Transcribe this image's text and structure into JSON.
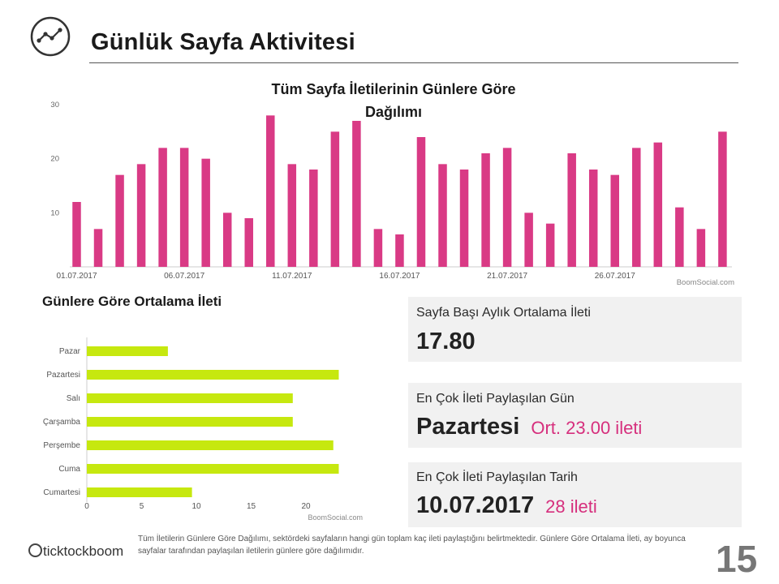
{
  "header": {
    "title": "Günlük Sayfa Aktivitesi",
    "icon": "line-chart-icon"
  },
  "chart1": {
    "title": "Tüm Sayfa İletilerinin Günlere Göre Dağılımı"
  },
  "chart2": {
    "heading": "Günlere Göre Ortalama İleti"
  },
  "chart_data": [
    {
      "type": "bar",
      "title": "Tüm Sayfa İletilerinin Günlere Göre Dağılımı",
      "color": "#d93a85",
      "categories": [
        "01.07.2017",
        "02.07.2017",
        "03.07.2017",
        "04.07.2017",
        "05.07.2017",
        "06.07.2017",
        "07.07.2017",
        "08.07.2017",
        "09.07.2017",
        "10.07.2017",
        "11.07.2017",
        "12.07.2017",
        "13.07.2017",
        "14.07.2017",
        "15.07.2017",
        "16.07.2017",
        "17.07.2017",
        "18.07.2017",
        "19.07.2017",
        "20.07.2017",
        "21.07.2017",
        "22.07.2017",
        "23.07.2017",
        "24.07.2017",
        "25.07.2017",
        "26.07.2017",
        "27.07.2017",
        "28.07.2017",
        "29.07.2017",
        "30.07.2017",
        "31.07.2017"
      ],
      "values": [
        12,
        7,
        17,
        19,
        22,
        22,
        20,
        10,
        9,
        28,
        19,
        18,
        25,
        27,
        7,
        6,
        24,
        19,
        18,
        21,
        22,
        10,
        8,
        21,
        18,
        17,
        22,
        23,
        11,
        7,
        25
      ],
      "tick_labels": [
        "01.07.2017",
        "06.07.2017",
        "11.07.2017",
        "16.07.2017",
        "21.07.2017",
        "26.07.2017"
      ],
      "yticks": [
        10,
        20,
        30
      ],
      "ylim": [
        0,
        30
      ],
      "source": "BoomSocial.com",
      "grid": false
    },
    {
      "type": "bar",
      "orientation": "horizontal",
      "color": "#c6e80f",
      "categories": [
        "Pazar",
        "Pazartesi",
        "Salı",
        "Çarşamba",
        "Perşembe",
        "Cuma",
        "Cumartesi"
      ],
      "values": [
        7.4,
        23.0,
        18.8,
        18.8,
        22.5,
        23.0,
        9.6
      ],
      "xticks": [
        0,
        5,
        10,
        15,
        20
      ],
      "xlim": [
        0,
        25
      ],
      "source": "BoomSocial.com",
      "grid": false
    }
  ],
  "stats": [
    {
      "label": "Sayfa Başı Aylık Ortalama İleti",
      "value": "17.80",
      "extra": ""
    },
    {
      "label": "En Çok İleti Paylaşılan Gün",
      "value": "Pazartesi",
      "extra": "Ort. 23.00 ileti"
    },
    {
      "label": "En Çok İleti Paylaşılan Tarih",
      "value": "10.07.2017",
      "extra": "28 ileti"
    }
  ],
  "footer": {
    "logo_text": "ticktockboom",
    "note": "Tüm İletilerin Günlere Göre Dağılımı, sektördeki sayfaların hangi gün toplam kaç ileti paylaştığını belirtmektedir. Günlere Göre Ortalama İleti, ay boyunca sayfalar tarafından paylaşılan iletilerin günlere göre dağılımıdır.",
    "page_number": "15"
  },
  "colors": {
    "accent": "#d62f7d",
    "bar_pink": "#d93a85",
    "bar_lime": "#c6e80f",
    "box_bg": "#f1f1f1"
  }
}
